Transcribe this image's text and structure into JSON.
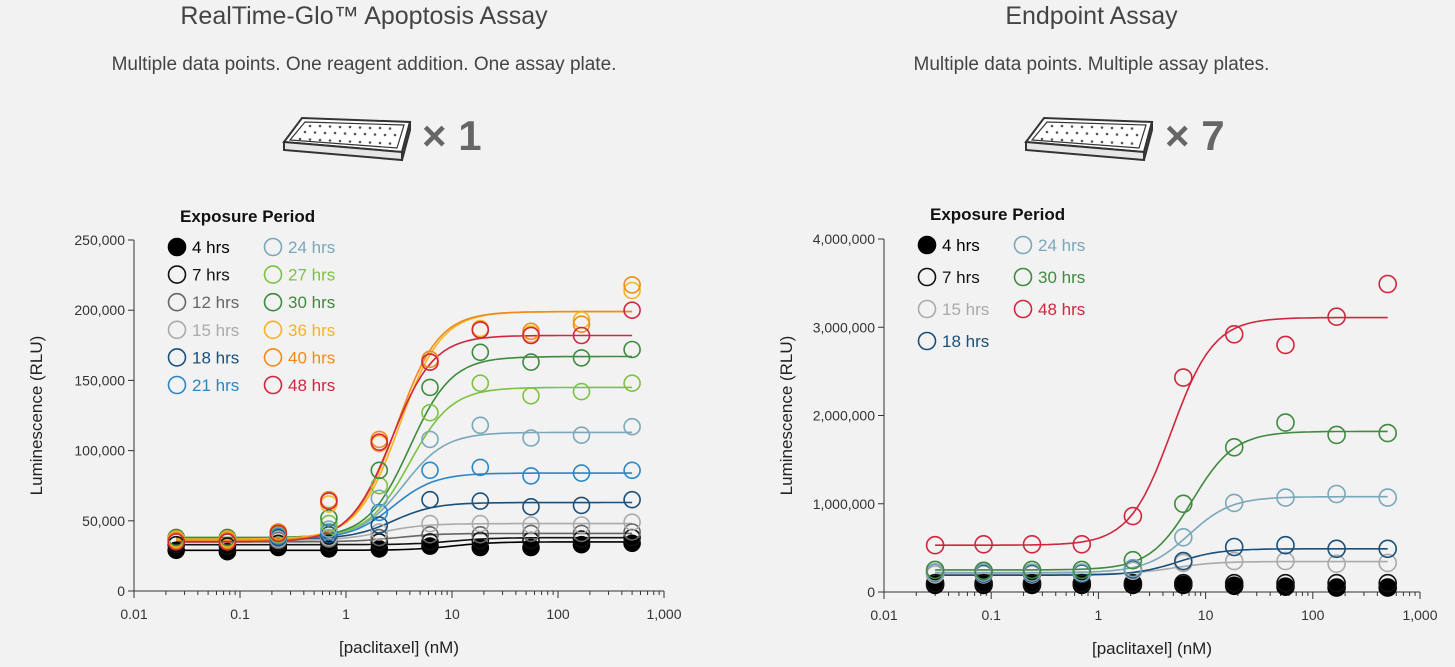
{
  "left_panel": {
    "title": "RealTime-Glo™ Apoptosis Assay",
    "subtitle": "Multiple data points. One reagent addition. One assay plate.",
    "plate_multiplier": "× 1"
  },
  "right_panel": {
    "title": "Endpoint Assay",
    "subtitle": "Multiple data points. Multiple assay plates.",
    "plate_multiplier": "× 7"
  },
  "chart_data": [
    {
      "type": "scatter",
      "fit": "sigmoidal dose-response",
      "xlabel": "[paclitaxel] (nM)",
      "ylabel": "Luminescence (RLU)",
      "xscale": "log",
      "xlim": [
        0.01,
        1000
      ],
      "ylim": [
        0,
        250000
      ],
      "xticks": [
        "0.01",
        "0.1",
        "1",
        "10",
        "100",
        "1,000"
      ],
      "yticks": [
        "0",
        "50,000",
        "100,000",
        "150,000",
        "200,000",
        "250,000"
      ],
      "legend_title": "Exposure Period",
      "legend_placement": "top-left",
      "grid": false,
      "x": [
        0.025,
        0.076,
        0.23,
        0.69,
        2.06,
        6.2,
        18.5,
        55.6,
        166.7,
        500
      ],
      "series": [
        {
          "name": "4 hrs",
          "color": "#000000",
          "filled": true,
          "values": [
            29000,
            28000,
            31000,
            30000,
            30000,
            32000,
            31000,
            31000,
            33000,
            34000
          ],
          "fit": {
            "bottom": 29000,
            "top": 35000,
            "ec50": 10
          }
        },
        {
          "name": "7 hrs",
          "color": "#111111",
          "filled": false,
          "values": [
            33000,
            32000,
            34000,
            34000,
            35000,
            35000,
            36000,
            36000,
            37000,
            38000
          ],
          "fit": {
            "bottom": 33000,
            "top": 38000,
            "ec50": 10
          }
        },
        {
          "name": "12 hrs",
          "color": "#666666",
          "filled": false,
          "values": [
            36000,
            35000,
            36000,
            37000,
            38000,
            40000,
            40000,
            41000,
            41000,
            42000
          ],
          "fit": {
            "bottom": 35000,
            "top": 41000,
            "ec50": 3
          }
        },
        {
          "name": "15 hrs",
          "color": "#aaaaaa",
          "filled": false,
          "values": [
            37000,
            36000,
            37000,
            38000,
            42000,
            48000,
            48000,
            47000,
            47000,
            49000
          ],
          "fit": {
            "bottom": 36000,
            "top": 48000,
            "ec50": 2.2
          }
        },
        {
          "name": "18 hrs",
          "color": "#1a4f7a",
          "filled": false,
          "values": [
            37000,
            37000,
            38000,
            40000,
            47000,
            65000,
            64000,
            60000,
            61000,
            65000
          ],
          "fit": {
            "bottom": 37000,
            "top": 63000,
            "ec50": 2.8
          }
        },
        {
          "name": "21 hrs",
          "color": "#2b86c5",
          "filled": false,
          "values": [
            37000,
            37000,
            39000,
            42000,
            56000,
            86000,
            88000,
            82000,
            84000,
            86000
          ],
          "fit": {
            "bottom": 37000,
            "top": 84000,
            "ec50": 2.8
          }
        },
        {
          "name": "24 hrs",
          "color": "#7aa7ba",
          "filled": false,
          "values": [
            38000,
            38000,
            40000,
            44000,
            66000,
            108000,
            118000,
            109000,
            111000,
            117000
          ],
          "fit": {
            "bottom": 38000,
            "top": 113000,
            "ec50": 3.5
          }
        },
        {
          "name": "27 hrs",
          "color": "#7cc242",
          "filled": false,
          "values": [
            38000,
            38000,
            40000,
            48000,
            75000,
            127000,
            148000,
            139000,
            142000,
            148000
          ],
          "fit": {
            "bottom": 38000,
            "top": 145000,
            "ec50": 4
          }
        },
        {
          "name": "30 hrs",
          "color": "#3e8a3e",
          "filled": false,
          "values": [
            38000,
            38000,
            41000,
            52000,
            86000,
            145000,
            170000,
            163000,
            166000,
            172000
          ],
          "fit": {
            "bottom": 38000,
            "top": 167000,
            "ec50": 4
          }
        },
        {
          "name": "36 hrs",
          "color": "#f5b41f",
          "filled": false,
          "values": [
            37000,
            37000,
            42000,
            62000,
            105000,
            163000,
            187000,
            183000,
            193000,
            214000
          ],
          "fit": {
            "bottom": 37000,
            "top": 199000,
            "ec50": 3.2
          }
        },
        {
          "name": "40 hrs",
          "color": "#f08a1c",
          "filled": false,
          "values": [
            36000,
            36000,
            42000,
            65000,
            108000,
            165000,
            186000,
            185000,
            190000,
            218000
          ],
          "fit": {
            "bottom": 36000,
            "top": 199000,
            "ec50": 3
          }
        },
        {
          "name": "48 hrs",
          "color": "#d0263e",
          "filled": false,
          "values": [
            35000,
            35000,
            41000,
            64000,
            106000,
            163000,
            186000,
            182000,
            182000,
            200000
          ],
          "fit": {
            "bottom": 35000,
            "top": 182000,
            "ec50": 2.7
          }
        }
      ]
    },
    {
      "type": "scatter",
      "fit": "sigmoidal dose-response",
      "xlabel": "[paclitaxel] (nM)",
      "ylabel": "Luminescence (RLU)",
      "xscale": "log",
      "xlim": [
        0.01,
        1000
      ],
      "ylim": [
        0,
        4000000
      ],
      "xticks": [
        "0.01",
        "0.1",
        "1",
        "10",
        "100",
        "1,000"
      ],
      "yticks": [
        "0",
        "1,000,000",
        "2,000,000",
        "3,000,000",
        "4,000,000"
      ],
      "legend_title": "Exposure Period",
      "legend_placement": "top-left",
      "grid": false,
      "x": [
        0.03,
        0.085,
        0.24,
        0.7,
        2.1,
        6.2,
        18.5,
        55.6,
        166.7,
        500
      ],
      "series": [
        {
          "name": "4 hrs",
          "color": "#000000",
          "filled": true,
          "values": [
            80000,
            80000,
            80000,
            80000,
            80000,
            80000,
            70000,
            60000,
            50000,
            50000
          ],
          "fit": null
        },
        {
          "name": "7 hrs",
          "color": "#111111",
          "filled": false,
          "values": [
            100000,
            100000,
            100000,
            100000,
            100000,
            100000,
            100000,
            100000,
            100000,
            100000
          ],
          "fit": null
        },
        {
          "name": "15 hrs",
          "color": "#aaaaaa",
          "filled": false,
          "values": [
            200000,
            200000,
            200000,
            210000,
            240000,
            330000,
            350000,
            350000,
            320000,
            330000
          ],
          "fit": {
            "bottom": 200000,
            "top": 345000,
            "ec50": 5
          }
        },
        {
          "name": "18 hrs",
          "color": "#1a4f7a",
          "filled": false,
          "values": [
            220000,
            210000,
            210000,
            210000,
            260000,
            350000,
            510000,
            530000,
            490000,
            490000
          ],
          "fit": {
            "bottom": 190000,
            "top": 490000,
            "ec50": 5.5
          }
        },
        {
          "name": "24 hrs",
          "color": "#7aa7ba",
          "filled": false,
          "values": [
            220000,
            220000,
            220000,
            220000,
            270000,
            620000,
            1010000,
            1070000,
            1110000,
            1070000
          ],
          "fit": {
            "bottom": 220000,
            "top": 1080000,
            "ec50": 7
          }
        },
        {
          "name": "30 hrs",
          "color": "#3e8a3e",
          "filled": false,
          "values": [
            250000,
            240000,
            250000,
            250000,
            360000,
            1000000,
            1640000,
            1920000,
            1780000,
            1800000
          ],
          "fit": {
            "bottom": 250000,
            "top": 1820000,
            "ec50": 7.5
          }
        },
        {
          "name": "48 hrs",
          "color": "#d0263e",
          "filled": false,
          "values": [
            530000,
            540000,
            540000,
            540000,
            860000,
            2430000,
            2920000,
            2800000,
            3120000,
            3490000
          ],
          "fit": {
            "bottom": 530000,
            "top": 3110000,
            "ec50": 4.8
          }
        }
      ]
    }
  ]
}
